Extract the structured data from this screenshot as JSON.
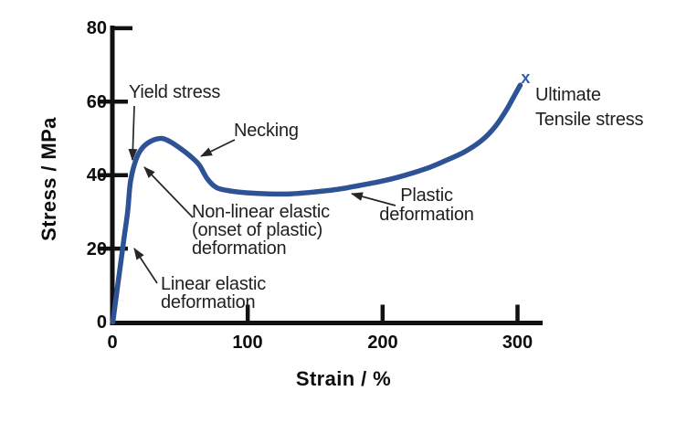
{
  "figure": {
    "background": "#ffffff",
    "curve_color": "#2e5296",
    "marker_color": "#3060b0",
    "axis_color": "#111111",
    "arrow_color": "#262626",
    "text_color": "#1f1f1f"
  },
  "chart_data": {
    "type": "line",
    "title": "",
    "xlabel": "Strain / %",
    "ylabel": "Stress / MPa",
    "xlim": [
      0,
      318
    ],
    "ylim": [
      0,
      80
    ],
    "grid": false,
    "legend": "none",
    "x_ticks": [
      0,
      100,
      200,
      300
    ],
    "y_ticks": [
      0,
      20,
      40,
      60,
      80
    ],
    "series": [
      {
        "name": "stress-strain curve",
        "points": [
          [
            0,
            0
          ],
          [
            4,
            11
          ],
          [
            8,
            22
          ],
          [
            11,
            30
          ],
          [
            13,
            38
          ],
          [
            16.5,
            43.5
          ],
          [
            21,
            47
          ],
          [
            28,
            49.2
          ],
          [
            36,
            50
          ],
          [
            42,
            49.2
          ],
          [
            50,
            47.3
          ],
          [
            57,
            45.3
          ],
          [
            64,
            42.8
          ],
          [
            70,
            39
          ],
          [
            77,
            36.6
          ],
          [
            87,
            35.7
          ],
          [
            99,
            35.2
          ],
          [
            116,
            34.9
          ],
          [
            132,
            34.9
          ],
          [
            149,
            35.4
          ],
          [
            166,
            36.1
          ],
          [
            183,
            37.2
          ],
          [
            200,
            38.4
          ],
          [
            217,
            40
          ],
          [
            234,
            42
          ],
          [
            247,
            44
          ],
          [
            261,
            46.4
          ],
          [
            273,
            49.3
          ],
          [
            283,
            53
          ],
          [
            291,
            57.3
          ],
          [
            297,
            61.2
          ],
          [
            302,
            64.5
          ]
        ]
      }
    ],
    "end_marker": {
      "symbol": "x",
      "strain": 306,
      "stress": 66.5
    },
    "annotations": {
      "yield": {
        "text": "Yield stress"
      },
      "necking": {
        "text": "Necking"
      },
      "nonlinear": {
        "lines": [
          "Non-linear elastic",
          "(onset of plastic)",
          "deformation"
        ]
      },
      "linear": {
        "lines": [
          "Linear elastic",
          "deformation"
        ]
      },
      "plastic": {
        "lines": [
          "Plastic",
          "deformation"
        ]
      },
      "uts": {
        "lines": [
          "Ultimate",
          "Tensile stress"
        ]
      }
    }
  }
}
